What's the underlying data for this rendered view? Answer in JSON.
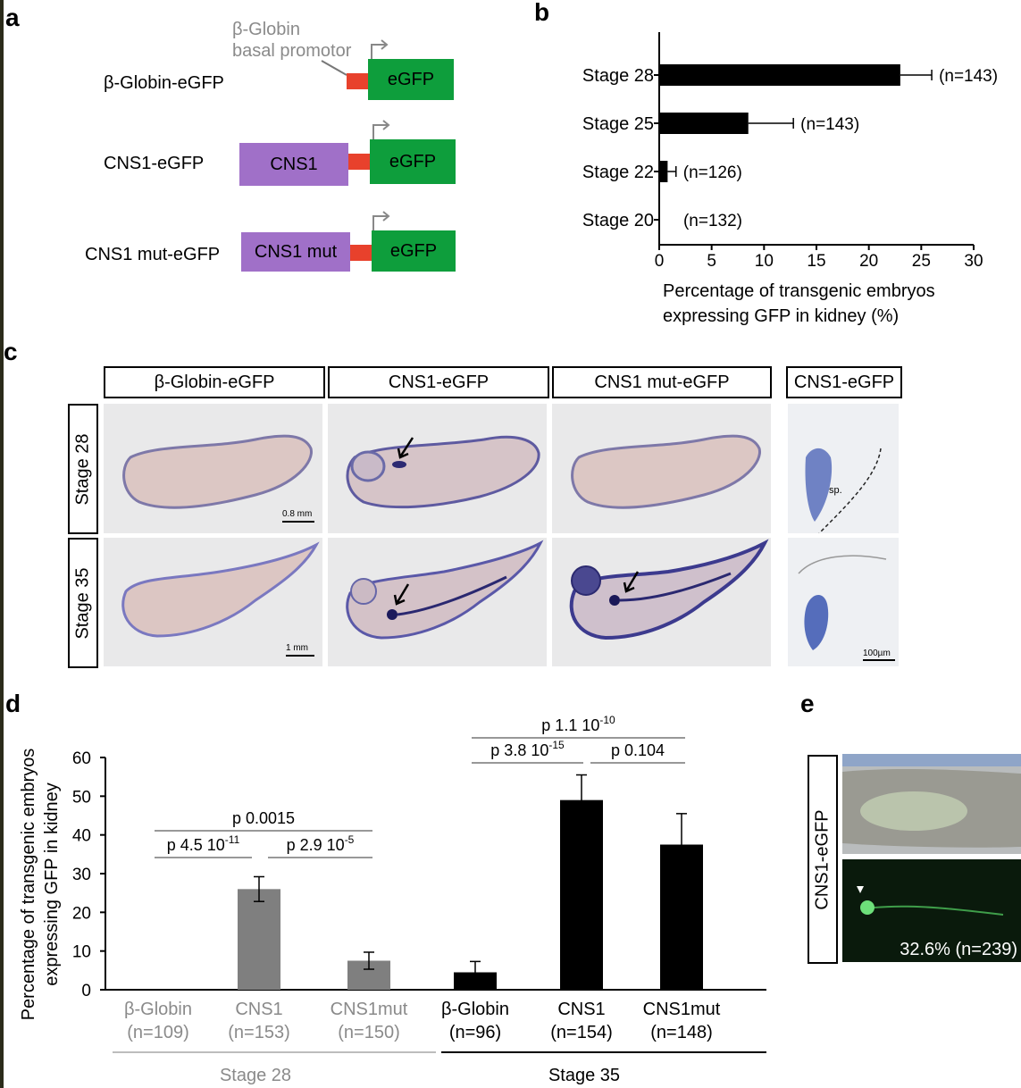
{
  "panel_labels": {
    "a": "a",
    "b": "b",
    "c": "c",
    "d": "d",
    "e": "e"
  },
  "panel_a": {
    "promoter_label_line1": "β-Globin",
    "promoter_label_line2": "basal promotor",
    "constructs": [
      {
        "name": "β-Globin-eGFP",
        "enhancer": "",
        "reporter": "eGFP"
      },
      {
        "name": "CNS1-eGFP",
        "enhancer": "CNS1",
        "reporter": "eGFP"
      },
      {
        "name": "CNS1 mut-eGFP",
        "enhancer": "CNS1 mut",
        "reporter": "eGFP"
      }
    ],
    "colors": {
      "enhancer": "#a070c8",
      "reporter": "#0e9e3c",
      "promoter": "#e8412c"
    }
  },
  "panel_c": {
    "columns": [
      "β-Globin-eGFP",
      "CNS1-eGFP",
      "CNS1 mut-eGFP",
      "CNS1-eGFP"
    ],
    "rows": [
      "Stage 28",
      "Stage 35"
    ],
    "scale_bars": [
      "0.8 mm",
      "1 mm",
      "100µm"
    ],
    "section_label": "sp."
  },
  "panel_e": {
    "label": "CNS1-eGFP",
    "caption": "32.6% (n=239)"
  },
  "chart_data": [
    {
      "type": "bar",
      "orientation": "horizontal",
      "categories": [
        "Stage 28",
        "Stage 25",
        "Stage 22",
        "Stage 20"
      ],
      "values": [
        23,
        8.5,
        0.8,
        0
      ],
      "errors": [
        3,
        4.3,
        0.8,
        0
      ],
      "n_labels": [
        "(n=143)",
        "(n=143)",
        "(n=126)",
        "(n=132)"
      ],
      "xlabel_line1": "Percentage of transgenic embryos",
      "xlabel_line2": "expressing GFP in kidney (%)",
      "xlim": [
        0,
        30
      ],
      "xticks": [
        0,
        5,
        10,
        15,
        20,
        25,
        30
      ]
    },
    {
      "type": "bar",
      "categories": [
        "β-Globin",
        "CNS1",
        "CNS1mut",
        "β-Globin",
        "CNS1",
        "CNS1mut"
      ],
      "n_labels": [
        "(n=109)",
        "(n=153)",
        "(n=150)",
        "(n=96)",
        "(n=154)",
        "(n=148)"
      ],
      "values": [
        0,
        26,
        7.5,
        4.5,
        49,
        37.5
      ],
      "errors": [
        0,
        3.2,
        2.2,
        2.8,
        6.5,
        8
      ],
      "groups": [
        {
          "name": "Stage 28",
          "color": "#7f7f7f",
          "text_color": "#8a8a8a"
        },
        {
          "name": "Stage 35",
          "color": "#000000",
          "text_color": "#000000"
        }
      ],
      "ylabel_line1": "Percentage of transgenic embryos",
      "ylabel_line2": "expressing GFP in kidney",
      "ylim": [
        0,
        60
      ],
      "yticks": [
        0,
        10,
        20,
        30,
        40,
        50,
        60
      ],
      "pvalues": [
        {
          "label": "p 4.5 10",
          "exp": "-11",
          "from": 0,
          "to": 1
        },
        {
          "label": "p 2.9 10",
          "exp": "-5",
          "from": 1,
          "to": 2
        },
        {
          "label": "p 0.0015",
          "exp": "",
          "from": 0,
          "to": 2
        },
        {
          "label": "p 3.8 10",
          "exp": "-15",
          "from": 3,
          "to": 4
        },
        {
          "label": "p 0.104",
          "exp": "",
          "from": 4,
          "to": 5
        },
        {
          "label": "p 1.1 10",
          "exp": "-10",
          "from": 3,
          "to": 5
        }
      ]
    }
  ]
}
